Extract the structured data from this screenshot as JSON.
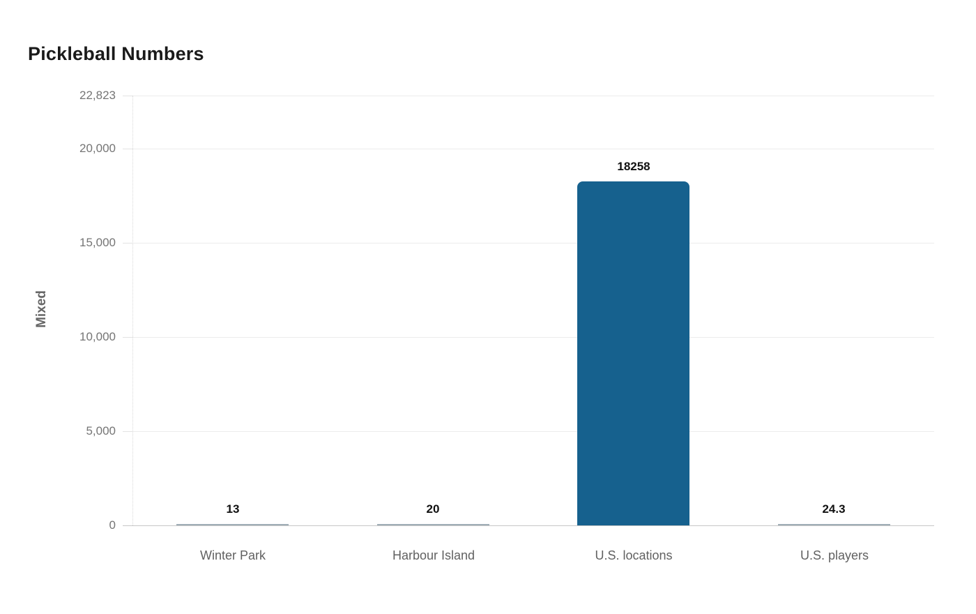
{
  "chart_data": {
    "type": "bar",
    "title": "Pickleball Numbers",
    "xlabel": "",
    "ylabel": "Mixed",
    "categories": [
      "Winter Park",
      "Harbour Island",
      "U.S. locations",
      "U.S. players"
    ],
    "values": [
      13,
      20,
      18258,
      24.3
    ],
    "value_labels": [
      "13",
      "20",
      "18258",
      "24.3"
    ],
    "ylim": [
      0,
      22823
    ],
    "yticks": [
      0,
      5000,
      10000,
      15000,
      20000,
      22823
    ],
    "ytick_labels": [
      "0",
      "5,000",
      "10,000",
      "15,000",
      "20,000",
      "22,823"
    ],
    "grid": true,
    "legend_position": "none",
    "colors": {
      "bar": "#16618e",
      "small_bar": "#9fadb6",
      "title": "#1a1a1a",
      "value_label": "#111111",
      "ytick_label": "#757575",
      "category_label": "#616161",
      "ylabel": "#666666",
      "gridline": "#ececec",
      "tick_mark": "#e3e3e3",
      "axis_baseline": "#c6c6c6",
      "background": "#ffffff"
    }
  }
}
